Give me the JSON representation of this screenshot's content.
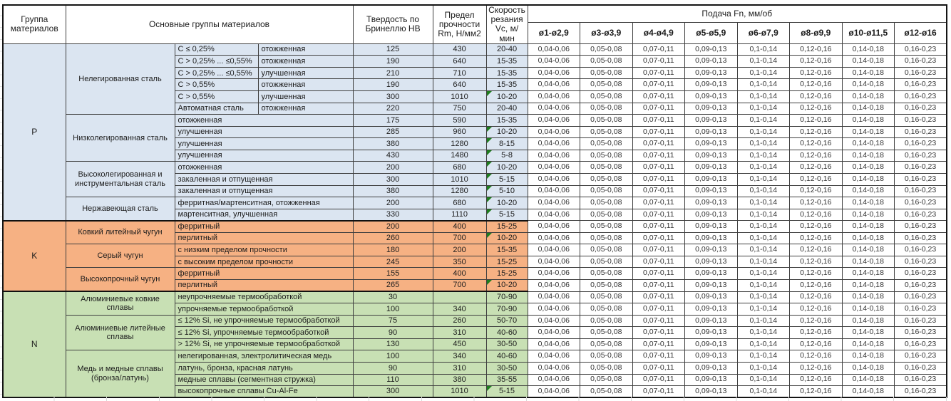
{
  "palette": {
    "P": "#dbe5f1",
    "K": "#f6b183",
    "N": "#c8e0b4",
    "marker_green": "#1e7e1e"
  },
  "header": {
    "group": "Группа материалов",
    "main_groups": "Основные группы материалов",
    "hardness": "Твердость по Бринеллю НВ",
    "strength": "Предел прочности Rm, Н/мм2",
    "speed": "Скорость резания Vc, м/мин",
    "feed_title": "Подача Fn, мм/об",
    "feed_cols": [
      "ø1-ø2,9",
      "ø3-ø3,9",
      "ø4-ø4,9",
      "ø5-ø5,9",
      "ø6-ø7,9",
      "ø8-ø9,9",
      "ø10-ø11,5",
      "ø12-ø16"
    ]
  },
  "feed_values_all_rows": [
    "0,04-0,06",
    "0,05-0,08",
    "0,07-0,11",
    "0,09-0,13",
    "0,1-0,14",
    "0,12-0,16",
    "0,14-0,18",
    "0,16-0,23"
  ],
  "materials": [
    {
      "code": "P",
      "subgroups": [
        {
          "name": "Нелегированная сталь",
          "rows": [
            {
              "spec": [
                "C ≤ 0,25%",
                "отожженная"
              ],
              "hb": "125",
              "rm": "430",
              "vc": "20-40",
              "marker": false
            },
            {
              "spec": [
                "C > 0,25% ... ≤0,55%",
                "отожженная"
              ],
              "hb": "190",
              "rm": "640",
              "vc": "15-35",
              "marker": false
            },
            {
              "spec": [
                "C > 0,25% ... ≤0,55%",
                "улучшенная"
              ],
              "hb": "210",
              "rm": "710",
              "vc": "15-35",
              "marker": false
            },
            {
              "spec": [
                "C > 0,55%",
                "отожженная"
              ],
              "hb": "190",
              "rm": "640",
              "vc": "15-35",
              "marker": false
            },
            {
              "spec": [
                "C > 0,55%",
                "улучшенная"
              ],
              "hb": "300",
              "rm": "1010",
              "vc": "10-20",
              "marker": true
            },
            {
              "spec": [
                "Автоматная сталь",
                "отожженная"
              ],
              "hb": "220",
              "rm": "750",
              "vc": "20-40",
              "marker": false
            }
          ]
        },
        {
          "name": "Низколегированная сталь",
          "rows": [
            {
              "spec": [
                "отожженная"
              ],
              "hb": "175",
              "rm": "590",
              "vc": "15-35",
              "marker": false
            },
            {
              "spec": [
                "улучшенная"
              ],
              "hb": "285",
              "rm": "960",
              "vc": "10-20",
              "marker": true
            },
            {
              "spec": [
                "улучшенная"
              ],
              "hb": "380",
              "rm": "1280",
              "vc": "8-15",
              "marker": true
            },
            {
              "spec": [
                "улучшенная"
              ],
              "hb": "430",
              "rm": "1480",
              "vc": "5-8",
              "marker": true
            }
          ]
        },
        {
          "name": "Высоколегированная и инструментальная сталь",
          "rows": [
            {
              "spec": [
                "отожженная"
              ],
              "hb": "200",
              "rm": "680",
              "vc": "10-20",
              "marker": true
            },
            {
              "spec": [
                "закаленная и отпущенная"
              ],
              "hb": "300",
              "rm": "1010",
              "vc": "5-15",
              "marker": true
            },
            {
              "spec": [
                "закаленная и отпущенная"
              ],
              "hb": "380",
              "rm": "1280",
              "vc": "5-10",
              "marker": true
            }
          ]
        },
        {
          "name": "Нержавеющая сталь",
          "rows": [
            {
              "spec": [
                "ферритная/мартенситная, отожженная"
              ],
              "hb": "200",
              "rm": "680",
              "vc": "10-20",
              "marker": true
            },
            {
              "spec": [
                "мартенситная, улучшенная"
              ],
              "hb": "330",
              "rm": "1110",
              "vc": "5-15",
              "marker": true
            }
          ]
        }
      ]
    },
    {
      "code": "K",
      "subgroups": [
        {
          "name": "Ковкий литейный чугун",
          "rows": [
            {
              "spec": [
                "ферритный"
              ],
              "hb": "200",
              "rm": "400",
              "vc": "15-25",
              "marker": false
            },
            {
              "spec": [
                "перлитный"
              ],
              "hb": "260",
              "rm": "700",
              "vc": "10-20",
              "marker": true
            }
          ]
        },
        {
          "name": "Серый чугун",
          "rows": [
            {
              "spec": [
                "с низким пределом прочности"
              ],
              "hb": "180",
              "rm": "200",
              "vc": "15-35",
              "marker": false
            },
            {
              "spec": [
                "с высоким пределом прочности"
              ],
              "hb": "245",
              "rm": "350",
              "vc": "15-25",
              "marker": false
            }
          ]
        },
        {
          "name": "Высокопрочный чугун",
          "rows": [
            {
              "spec": [
                "ферритный"
              ],
              "hb": "155",
              "rm": "400",
              "vc": "15-25",
              "marker": false
            },
            {
              "spec": [
                "перлитный"
              ],
              "hb": "265",
              "rm": "700",
              "vc": "10-20",
              "marker": true
            }
          ]
        }
      ]
    },
    {
      "code": "N",
      "subgroups": [
        {
          "name": "Алюминиевые ковкие сплавы",
          "rows": [
            {
              "spec": [
                "неупрочняемые термообработкой"
              ],
              "hb": "30",
              "rm": "",
              "vc": "70-90",
              "marker": false
            },
            {
              "spec": [
                "упрочняемые термообработкой"
              ],
              "hb": "100",
              "rm": "340",
              "vc": "70-90",
              "marker": false
            }
          ]
        },
        {
          "name": "Алюминиевые литейные сплавы",
          "rows": [
            {
              "spec": [
                "≤ 12% Si, не упрочняемые термообработкой"
              ],
              "hb": "75",
              "rm": "260",
              "vc": "50-70",
              "marker": false
            },
            {
              "spec": [
                "≤ 12% Si, упрочняемые термообработкой"
              ],
              "hb": "90",
              "rm": "310",
              "vc": "40-60",
              "marker": false
            },
            {
              "spec": [
                "> 12% Si, не упрочняемые термообработкой"
              ],
              "hb": "130",
              "rm": "450",
              "vc": "30-50",
              "marker": false
            }
          ]
        },
        {
          "name": "Медь и медные сплавы (бронза/латунь)",
          "rows": [
            {
              "spec": [
                "нелегированная, электролитическая медь"
              ],
              "hb": "100",
              "rm": "340",
              "vc": "40-60",
              "marker": false
            },
            {
              "spec": [
                "латунь, бронза, красная латунь"
              ],
              "hb": "90",
              "rm": "310",
              "vc": "30-50",
              "marker": false
            },
            {
              "spec": [
                "медные сплавы (сегментная стружка)"
              ],
              "hb": "110",
              "rm": "380",
              "vc": "35-55",
              "marker": false
            },
            {
              "spec": [
                "высокопрочные сплавы Cu-Al-Fe"
              ],
              "hb": "300",
              "rm": "1010",
              "vc": "5-15",
              "marker": true
            }
          ]
        }
      ]
    }
  ]
}
